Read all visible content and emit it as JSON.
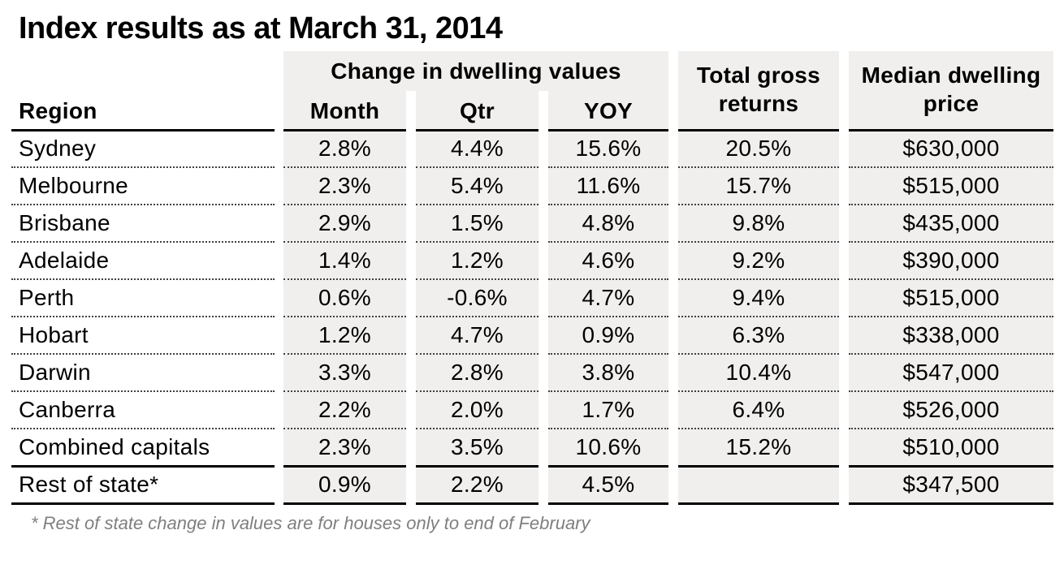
{
  "title": "Index results as at March 31, 2014",
  "footnote": "* Rest of state change in values are for houses only to end of February",
  "colors": {
    "column_shade": "#f0efee",
    "line_solid": "#000000",
    "line_dotted": "#404040",
    "footnote_text": "#7f7f7f"
  },
  "chart_data": {
    "type": "table",
    "title": "Index results as at March 31, 2014",
    "column_group": {
      "label": "Change in dwelling values",
      "spans": [
        "Month",
        "Qtr",
        "YOY"
      ]
    },
    "headers": {
      "region": "Region",
      "month": "Month",
      "qtr": "Qtr",
      "yoy": "YOY",
      "total_gross": "Total gross returns",
      "median": "Median dwelling price"
    },
    "rows": [
      {
        "region": "Sydney",
        "month": "2.8%",
        "qtr": "4.4%",
        "yoy": "15.6%",
        "total_gross": "20.5%",
        "median": "$630,000",
        "divider": "dotted"
      },
      {
        "region": "Melbourne",
        "month": "2.3%",
        "qtr": "5.4%",
        "yoy": "11.6%",
        "total_gross": "15.7%",
        "median": "$515,000",
        "divider": "dotted"
      },
      {
        "region": "Brisbane",
        "month": "2.9%",
        "qtr": "1.5%",
        "yoy": "4.8%",
        "total_gross": "9.8%",
        "median": "$435,000",
        "divider": "dotted"
      },
      {
        "region": "Adelaide",
        "month": "1.4%",
        "qtr": "1.2%",
        "yoy": "4.6%",
        "total_gross": "9.2%",
        "median": "$390,000",
        "divider": "dotted"
      },
      {
        "region": "Perth",
        "month": "0.6%",
        "qtr": "-0.6%",
        "yoy": "4.7%",
        "total_gross": "9.4%",
        "median": "$515,000",
        "divider": "dotted"
      },
      {
        "region": "Hobart",
        "month": "1.2%",
        "qtr": "4.7%",
        "yoy": "0.9%",
        "total_gross": "6.3%",
        "median": "$338,000",
        "divider": "dotted"
      },
      {
        "region": "Darwin",
        "month": "3.3%",
        "qtr": "2.8%",
        "yoy": "3.8%",
        "total_gross": "10.4%",
        "median": "$547,000",
        "divider": "dotted"
      },
      {
        "region": "Canberra",
        "month": "2.2%",
        "qtr": "2.0%",
        "yoy": "1.7%",
        "total_gross": "6.4%",
        "median": "$526,000",
        "divider": "dotted"
      },
      {
        "region": "Combined capitals",
        "month": "2.3%",
        "qtr": "3.5%",
        "yoy": "10.6%",
        "total_gross": "15.2%",
        "median": "$510,000",
        "divider": "solid"
      },
      {
        "region": "Rest of state*",
        "month": "0.9%",
        "qtr": "2.2%",
        "yoy": "4.5%",
        "total_gross": "",
        "median": "$347,500",
        "divider": "solid"
      }
    ],
    "footnote": "* Rest of state change in values are for houses only to end of February"
  }
}
